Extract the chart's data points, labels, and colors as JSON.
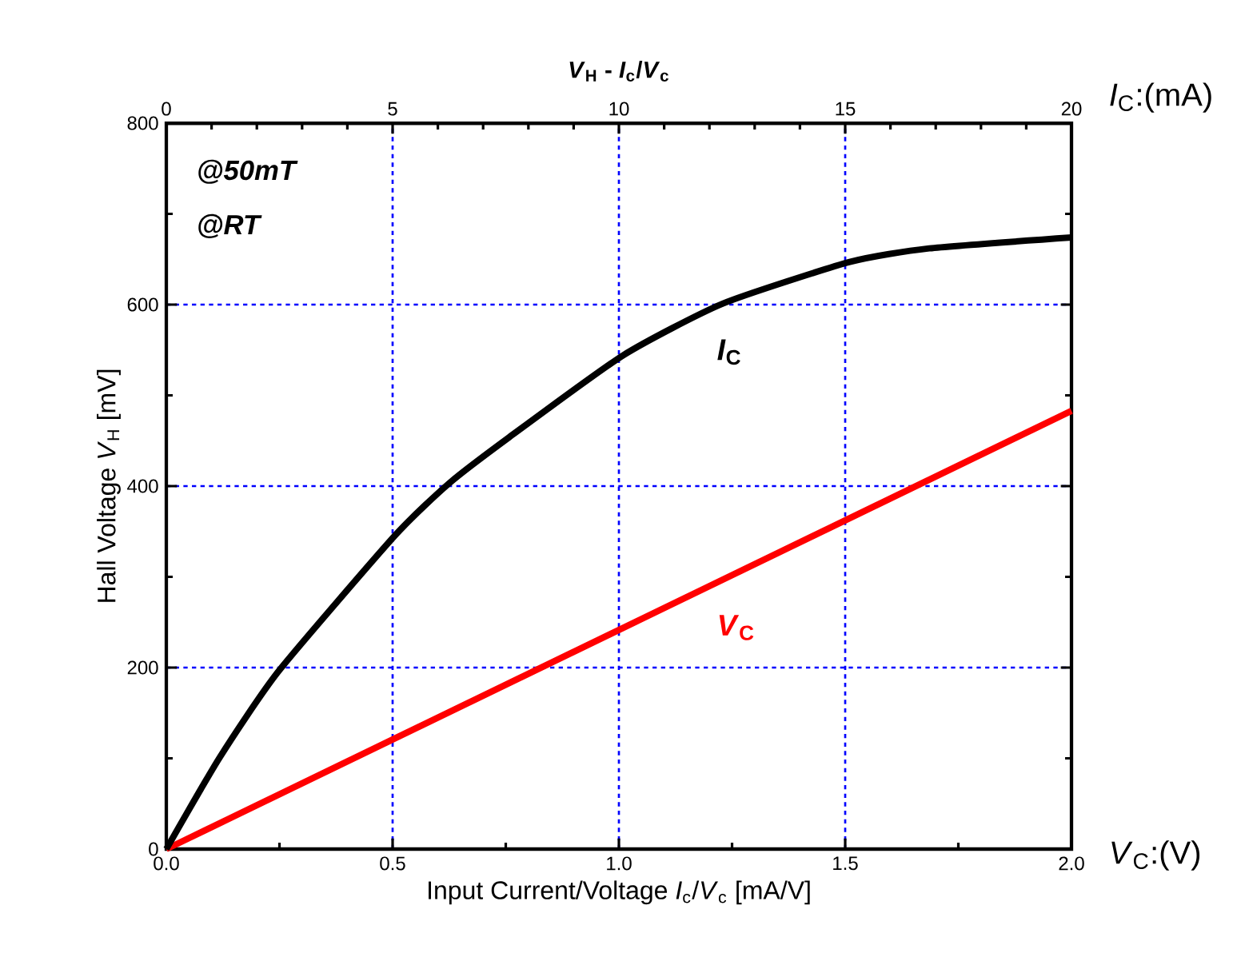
{
  "chart_data": {
    "type": "line",
    "title": "*V*$_{H}$ - *I*$_{c}$/*V*$_{c}$",
    "xlabel": "Input Current/Voltage *I*$_{c}$/*V*$_{c}$ [mA/V]",
    "x2label": "*I*$_{C}$:(mA)",
    "ylabel": "Hall Voltage *V*$_{H}$ [mV]",
    "annotations": [
      "@50mT",
      "@RT",
      "*V*$_{C}$:(V)"
    ],
    "series": [
      {
        "name": "*I*$_{C}$",
        "color": "#000000",
        "axis": "x2",
        "x": [
          0,
          1.18,
          2.48,
          5.06,
          6.27,
          7.58,
          10.09,
          12.29,
          15.1,
          16.86,
          20
        ],
        "values": [
          0,
          101,
          196,
          346,
          404,
          454,
          544,
          601,
          647,
          662,
          674
        ]
      },
      {
        "name": "*V*$_{C}$",
        "color": "#ff0000",
        "x": [
          0,
          2.0
        ],
        "values": [
          0,
          483
        ]
      }
    ],
    "xlim": [
      0,
      2.0
    ],
    "xticks": [
      {
        "value": 0,
        "label": "0.0"
      },
      {
        "value": 0.5,
        "label": "0.5"
      },
      {
        "value": 1.0,
        "label": "1.0"
      },
      {
        "value": 1.5,
        "label": "1.5"
      },
      {
        "value": 2.0,
        "label": "2.0"
      }
    ],
    "x2lim": [
      0,
      20
    ],
    "x2ticks": [
      0,
      5,
      10,
      15,
      20
    ],
    "ylim": [
      0,
      800
    ],
    "yticks": [
      0,
      200,
      400,
      600,
      800
    ],
    "grid": true,
    "line_style": "solid",
    "marker": "none"
  }
}
